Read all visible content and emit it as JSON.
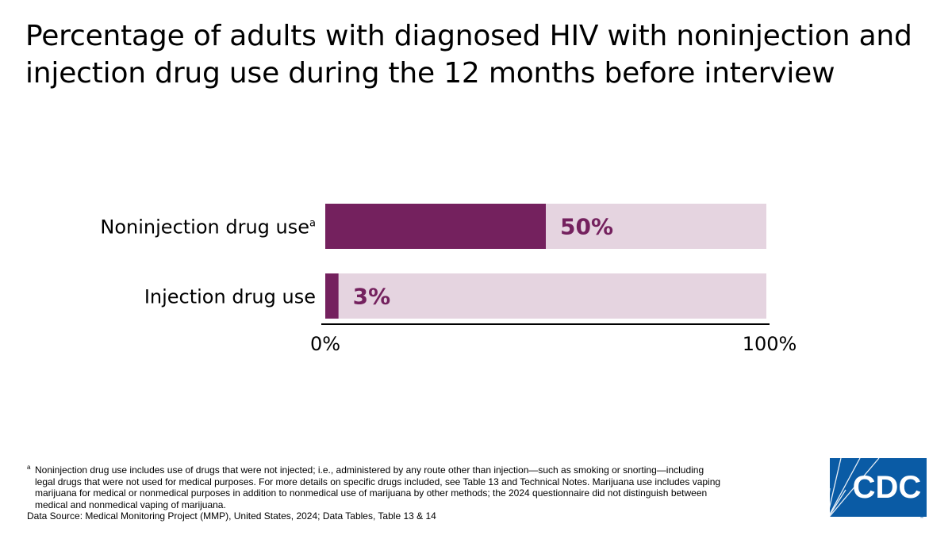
{
  "title": "Percentage of adults with diagnosed HIV with noninjection and injection drug use during the 12 months before interview",
  "colors": {
    "bar": "#74215e",
    "track": "#e5d4e0",
    "axis": "#000000",
    "logo": "#0a5ba5"
  },
  "chart_data": {
    "type": "bar",
    "orientation": "horizontal",
    "title": "",
    "xlabel": "",
    "ylabel": "",
    "categories": [
      {
        "label": "Noninjection drug use",
        "superscript": "a",
        "value": 50,
        "value_label": "50%"
      },
      {
        "label": "Injection drug use",
        "superscript": "",
        "value": 3,
        "value_label": "3%"
      }
    ],
    "xlim": [
      0,
      100
    ],
    "tick_labels": [
      "0%",
      "100%"
    ],
    "grid": false,
    "legend": "none"
  },
  "footnote": {
    "marker": "a",
    "lines": [
      "Noninjection drug use includes use of drugs that were not injected; i.e., administered by any route other than injection—such as smoking or snorting—including",
      "legal drugs that were not used for medical purposes. For more details on specific drugs included, see Table 13 and Technical Notes. Marijuana use includes vaping",
      "marijuana for medical or nonmedical purposes in addition to nonmedical use of marijuana by other methods; the 2024 questionnaire did not distinguish between",
      "medical and nonmedical vaping of marijuana."
    ]
  },
  "source": "Data Source: Medical Monitoring Project (MMP), United States, 2024; Data Tables, Table 13 & 14",
  "logo": {
    "text": "CDC",
    "icon": "cdc-logo-icon"
  }
}
